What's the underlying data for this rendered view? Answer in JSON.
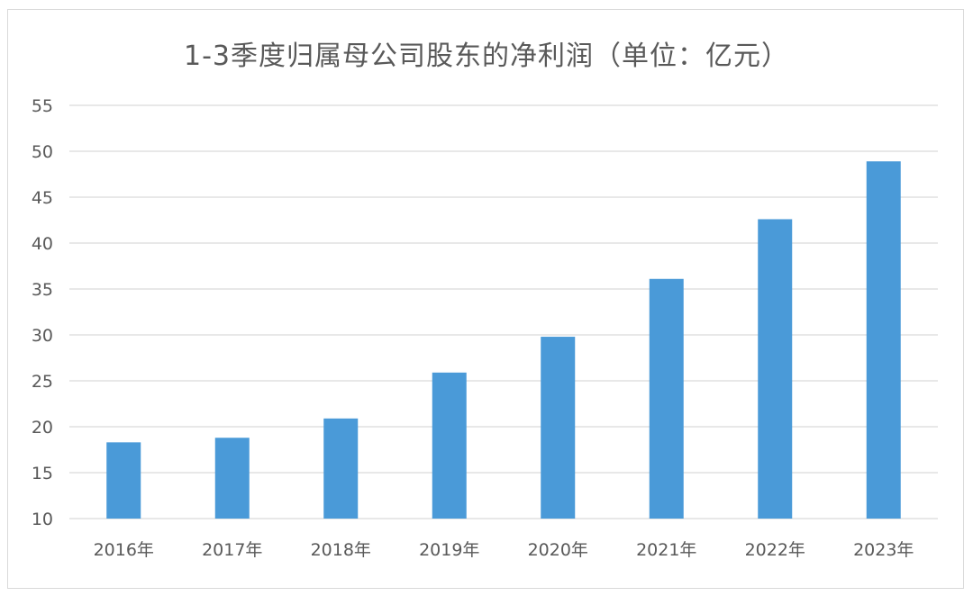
{
  "chart_data": {
    "type": "bar",
    "title": "1-3季度归属母公司股东的净利润（单位：亿元）",
    "xlabel": "",
    "ylabel": "",
    "categories": [
      "2016年",
      "2017年",
      "2018年",
      "2019年",
      "2020年",
      "2021年",
      "2022年",
      "2023年"
    ],
    "values": [
      18.3,
      18.8,
      20.9,
      25.9,
      29.8,
      36.1,
      42.6,
      48.9
    ],
    "ylim": [
      10,
      55
    ],
    "yticks": [
      10,
      15,
      20,
      25,
      30,
      35,
      40,
      45,
      50,
      55
    ],
    "grid": true,
    "legend": "none",
    "bar_color": "#4a9ad8",
    "grid_color": "#d9d9d9"
  }
}
